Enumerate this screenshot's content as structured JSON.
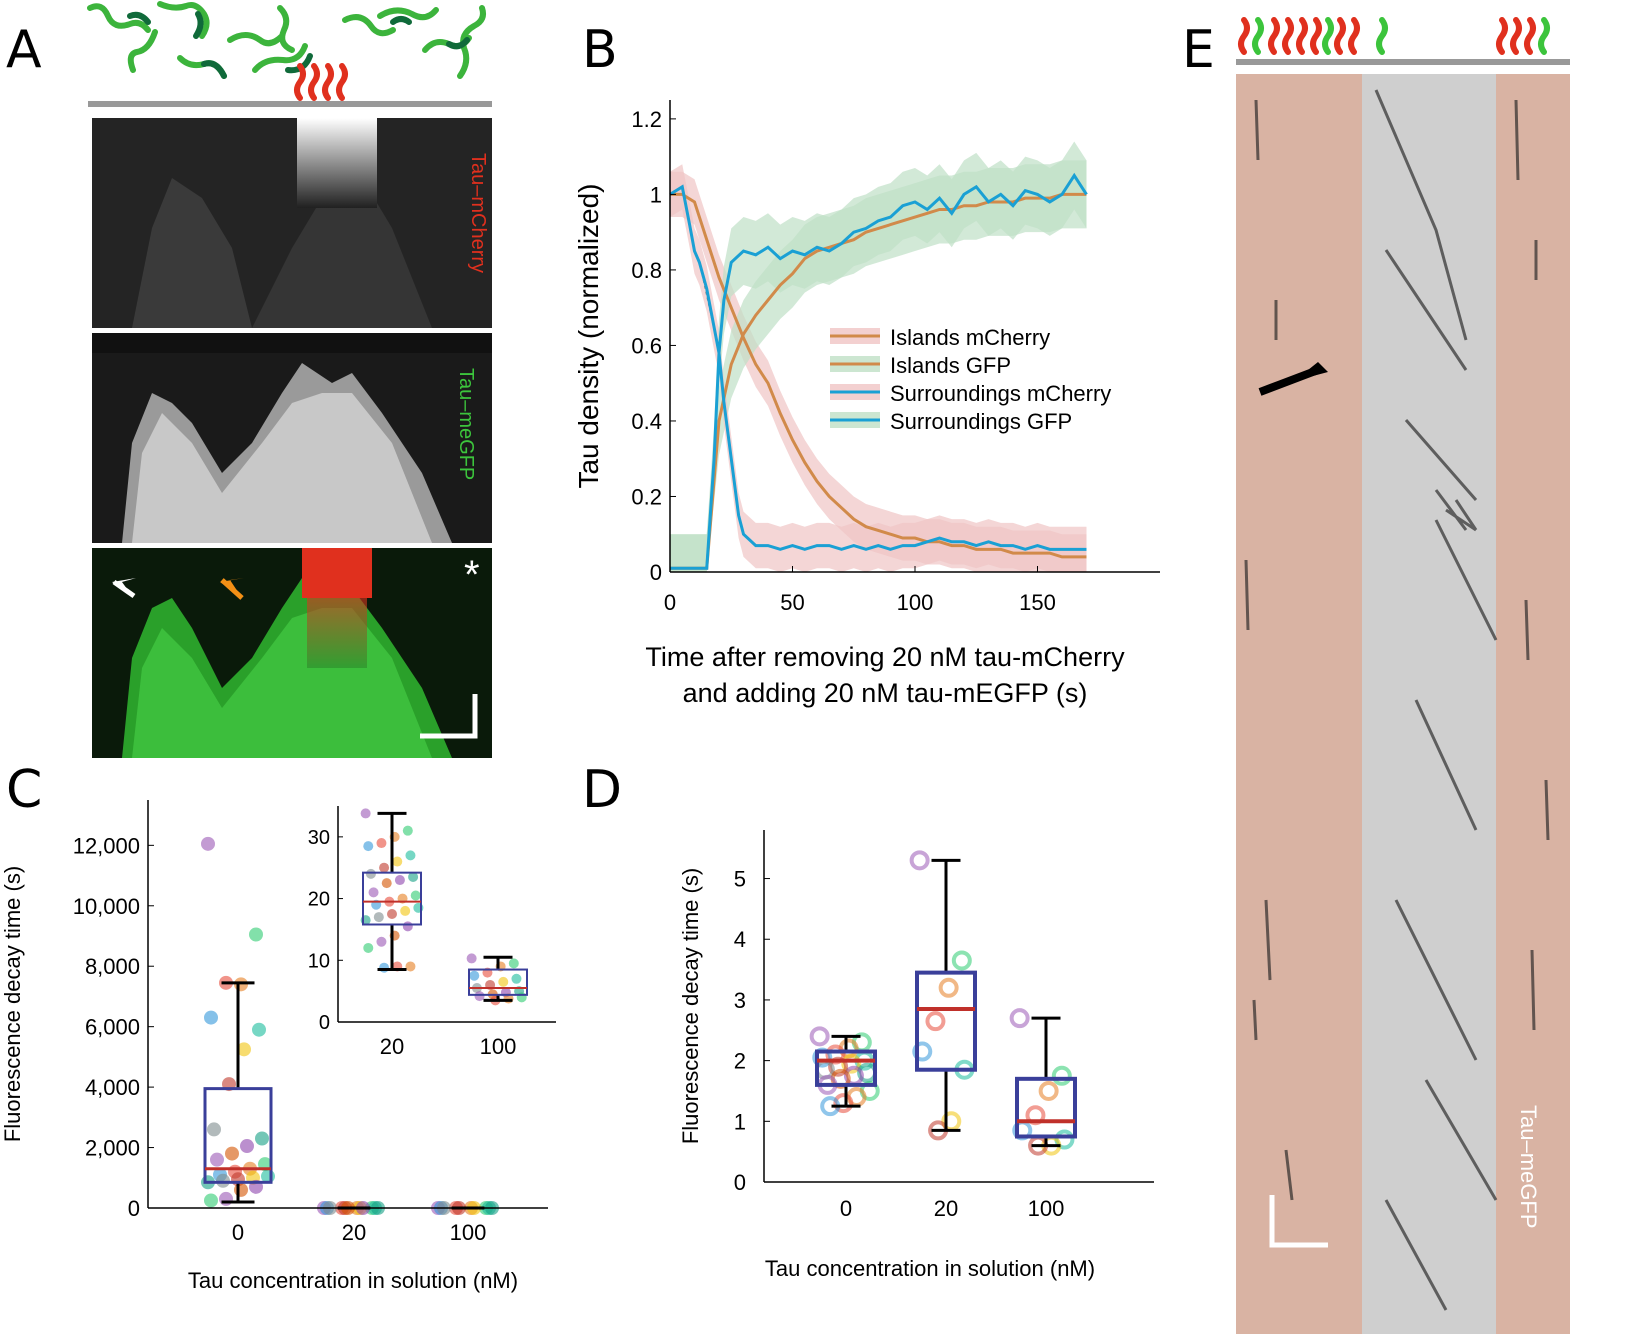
{
  "panels": {
    "a": "A",
    "b": "B",
    "c": "C",
    "d": "D",
    "e": "E"
  },
  "panel_a": {
    "label_mcherry": "Tau–mCherry",
    "label_gfp": "Tau–meGFP",
    "asterisk": "*",
    "colors": {
      "mcherry": "#e0301e",
      "gfp": "#3cc43c"
    }
  },
  "panel_e": {
    "label_gfp": "Tau–meGFP",
    "colors": {
      "island_bg": "#d9b3a3",
      "surround_bg": "#d0d0d0",
      "red": "#e0301e",
      "green": "#3cc43c"
    }
  },
  "chart_data": [
    {
      "id": "B",
      "type": "line",
      "xlabel_line1": "Time after removing 20 nM tau-mCherry",
      "xlabel_line2": "and adding 20 nM tau-mEGFP (s)",
      "ylabel": "Tau density (normalized)",
      "xlim": [
        0,
        200
      ],
      "ylim": [
        0,
        1.25
      ],
      "xticks": [
        0,
        50,
        100,
        150
      ],
      "yticks": [
        0,
        0.2,
        0.4,
        0.6,
        0.8,
        1,
        1.2
      ],
      "ytick_labels": [
        "0",
        "0.2",
        "0.4",
        "0.6",
        "0.8",
        "1",
        "1.2"
      ],
      "xtick_labels": [
        "0",
        "50",
        "100",
        "150"
      ],
      "legend": [
        "Islands mCherry",
        "Islands GFP",
        "Surroundings mCherry",
        "Surroundings GFP"
      ],
      "legend_position": "center-right",
      "series": [
        {
          "name": "Islands mCherry",
          "color": "#d18a4a",
          "band": "#f0c4c4",
          "x": [
            0,
            5,
            10,
            20,
            25,
            30,
            35,
            40,
            45,
            50,
            55,
            60,
            65,
            70,
            75,
            80,
            85,
            90,
            95,
            100,
            105,
            110,
            115,
            120,
            125,
            130,
            135,
            140,
            145,
            150,
            155,
            160,
            165,
            170
          ],
          "y": [
            1.0,
            1.0,
            0.98,
            0.78,
            0.7,
            0.62,
            0.55,
            0.5,
            0.42,
            0.35,
            0.29,
            0.24,
            0.2,
            0.17,
            0.14,
            0.12,
            0.11,
            0.1,
            0.09,
            0.09,
            0.08,
            0.08,
            0.07,
            0.07,
            0.06,
            0.06,
            0.06,
            0.05,
            0.05,
            0.05,
            0.05,
            0.04,
            0.04,
            0.04
          ]
        },
        {
          "name": "Islands GFP",
          "color": "#d18a4a",
          "band": "#bfe0c6",
          "x": [
            0,
            5,
            10,
            15,
            20,
            25,
            30,
            35,
            40,
            45,
            50,
            55,
            60,
            65,
            70,
            75,
            80,
            85,
            90,
            95,
            100,
            105,
            110,
            115,
            120,
            125,
            130,
            135,
            140,
            145,
            150,
            155,
            160,
            165,
            170
          ],
          "y": [
            0.01,
            0.01,
            0.01,
            0.01,
            0.4,
            0.55,
            0.63,
            0.68,
            0.72,
            0.76,
            0.79,
            0.83,
            0.85,
            0.86,
            0.87,
            0.88,
            0.9,
            0.91,
            0.92,
            0.93,
            0.94,
            0.95,
            0.96,
            0.96,
            0.97,
            0.97,
            0.98,
            0.98,
            0.98,
            0.99,
            0.99,
            0.99,
            1.0,
            1.0,
            1.0
          ]
        },
        {
          "name": "Surroundings mCherry",
          "color": "#1aa0d4",
          "band": "#f0c4c4",
          "x": [
            0,
            5,
            8,
            10,
            12,
            15,
            20,
            22,
            25,
            28,
            30,
            35,
            40,
            45,
            50,
            55,
            60,
            65,
            70,
            75,
            80,
            85,
            90,
            95,
            100,
            105,
            110,
            115,
            120,
            125,
            130,
            135,
            140,
            145,
            150,
            155,
            160,
            165,
            170
          ],
          "y": [
            1.0,
            1.02,
            0.92,
            0.85,
            0.82,
            0.75,
            0.58,
            0.45,
            0.3,
            0.15,
            0.1,
            0.07,
            0.07,
            0.06,
            0.07,
            0.06,
            0.07,
            0.07,
            0.06,
            0.07,
            0.06,
            0.07,
            0.06,
            0.07,
            0.07,
            0.08,
            0.09,
            0.08,
            0.08,
            0.07,
            0.08,
            0.07,
            0.07,
            0.06,
            0.07,
            0.06,
            0.06,
            0.06,
            0.06
          ]
        },
        {
          "name": "Surroundings GFP",
          "color": "#1aa0d4",
          "band": "#bfe0c6",
          "x": [
            0,
            5,
            10,
            15,
            18,
            20,
            22,
            25,
            30,
            35,
            40,
            45,
            50,
            55,
            60,
            65,
            70,
            75,
            80,
            85,
            90,
            95,
            100,
            105,
            110,
            115,
            120,
            125,
            130,
            135,
            140,
            145,
            150,
            155,
            160,
            165,
            170
          ],
          "y": [
            0.01,
            0.01,
            0.01,
            0.01,
            0.3,
            0.58,
            0.72,
            0.82,
            0.85,
            0.84,
            0.86,
            0.83,
            0.85,
            0.84,
            0.86,
            0.85,
            0.87,
            0.9,
            0.91,
            0.93,
            0.94,
            0.97,
            0.98,
            0.96,
            0.99,
            0.95,
            1.0,
            1.02,
            0.98,
            1.0,
            0.97,
            1.01,
            1.0,
            0.98,
            1.0,
            1.05,
            1.0
          ]
        }
      ]
    },
    {
      "id": "C",
      "type": "box",
      "xlabel": "Tau concentration in solution (nM)",
      "ylabel": "Fluorescence decay time (s)",
      "categories": [
        "0",
        "20",
        "100"
      ],
      "ylim": [
        0,
        13500
      ],
      "yticks": [
        0,
        2000,
        4000,
        6000,
        8000,
        10000,
        12000
      ],
      "ytick_labels": [
        "0",
        "2,000",
        "4,000",
        "6,000",
        "8,000",
        "10,000",
        "12,000"
      ],
      "boxes": [
        {
          "category": "0",
          "q1": 850,
          "median": 1300,
          "q3": 3950,
          "whisker_low": 200,
          "whisker_high": 7450
        },
        {
          "category": "20",
          "q1": 0,
          "median": 0,
          "q3": 0,
          "whisker_low": 0,
          "whisker_high": 0
        },
        {
          "category": "100",
          "q1": 0,
          "median": 0,
          "q3": 0,
          "whisker_low": 0,
          "whisker_high": 0
        }
      ],
      "points": {
        "0": [
          12050,
          9050,
          7400,
          7450,
          6300,
          5900,
          5250,
          4100,
          2600,
          2300,
          2050,
          1800,
          1600,
          1450,
          1300,
          1200,
          1100,
          1050,
          1000,
          950,
          900,
          850,
          700,
          600,
          300,
          250
        ],
        "20": [
          0,
          0,
          0,
          0,
          0,
          0,
          0,
          0,
          0,
          0,
          0,
          0
        ],
        "100": [
          0,
          0,
          0,
          0,
          0,
          0,
          0,
          0,
          0,
          0
        ]
      },
      "inset": {
        "categories": [
          "20",
          "100"
        ],
        "ylim": [
          0,
          35
        ],
        "yticks": [
          0,
          10,
          20,
          30
        ],
        "ytick_labels": [
          "0",
          "10",
          "20",
          "30"
        ],
        "boxes": [
          {
            "category": "20",
            "q1": 15.8,
            "median": 19.5,
            "q3": 24.2,
            "whisker_low": 8.5,
            "whisker_high": 33.8
          },
          {
            "category": "100",
            "q1": 4.4,
            "median": 5.5,
            "q3": 8.5,
            "whisker_low": 3.5,
            "whisker_high": 10.5
          }
        ],
        "points": {
          "20": [
            33.8,
            31,
            30,
            29,
            28.5,
            27,
            26,
            25,
            24,
            23.5,
            23,
            22.5,
            21,
            20.5,
            20,
            19.5,
            19,
            18.5,
            18,
            17.5,
            17,
            16.5,
            15.5,
            14,
            13,
            12,
            9,
            9,
            8.8
          ],
          "100": [
            10.3,
            9.5,
            9,
            8,
            7.5,
            7,
            6.5,
            6,
            5.5,
            5,
            4.8,
            4.5,
            4.2,
            4,
            3.8,
            3.5
          ]
        }
      }
    },
    {
      "id": "D",
      "type": "box",
      "xlabel": "Tau concentration in solution (nM)",
      "ylabel": "Fluorescence decay time (s)",
      "categories": [
        "0",
        "20",
        "100"
      ],
      "ylim": [
        0,
        5.8
      ],
      "yticks": [
        0,
        1,
        2,
        3,
        4,
        5
      ],
      "ytick_labels": [
        "0",
        "1",
        "2",
        "3",
        "4",
        "5"
      ],
      "boxes": [
        {
          "category": "0",
          "q1": 1.6,
          "median": 2.0,
          "q3": 2.15,
          "whisker_low": 1.25,
          "whisker_high": 2.4
        },
        {
          "category": "20",
          "q1": 1.85,
          "median": 2.85,
          "q3": 3.45,
          "whisker_low": 0.85,
          "whisker_high": 5.3
        },
        {
          "category": "100",
          "q1": 0.75,
          "median": 1.0,
          "q3": 1.7,
          "whisker_low": 0.6,
          "whisker_high": 2.7
        }
      ],
      "points": {
        "0": [
          2.4,
          2.3,
          2.2,
          2.1,
          2.05,
          2.0,
          1.95,
          1.9,
          1.85,
          1.8,
          1.75,
          1.7,
          1.6,
          1.5,
          1.4,
          1.3,
          1.25
        ],
        "20": [
          5.3,
          3.65,
          3.2,
          2.65,
          2.15,
          1.85,
          1.0,
          0.85
        ],
        "100": [
          2.7,
          1.75,
          1.5,
          1.1,
          0.85,
          0.7,
          0.6,
          0.6
        ]
      }
    }
  ]
}
